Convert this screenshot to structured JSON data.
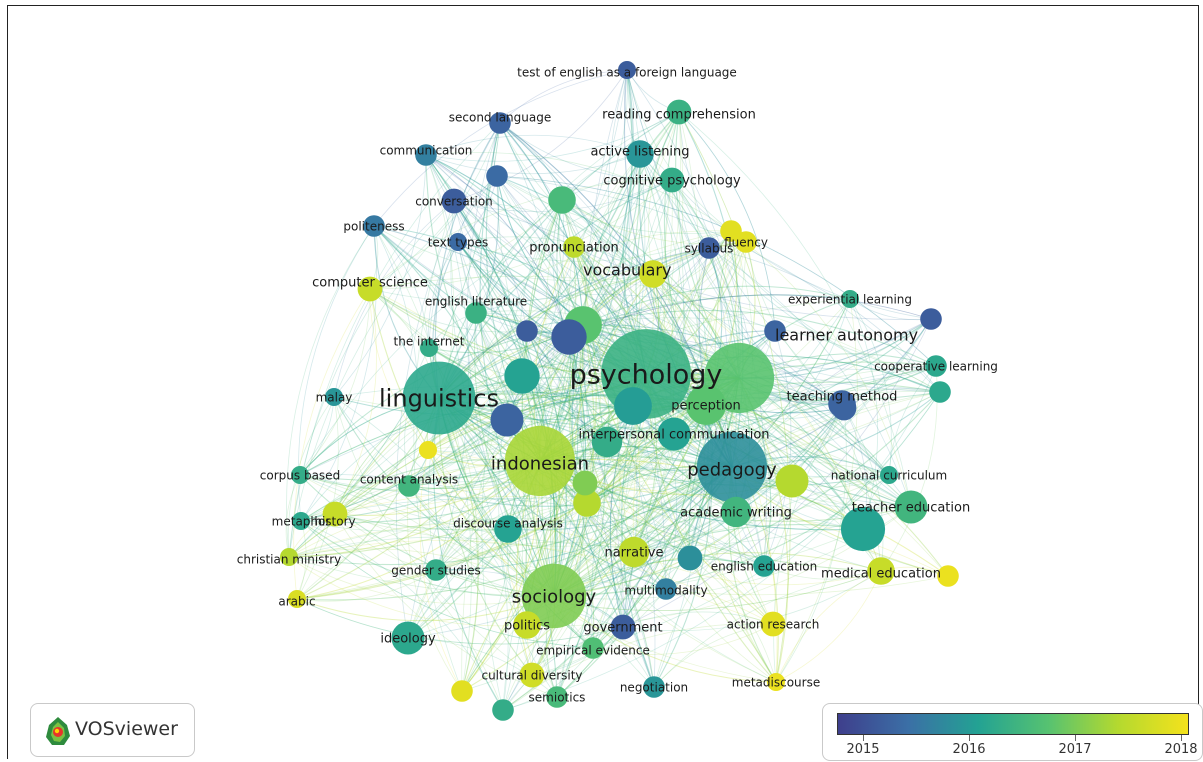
{
  "app": {
    "name": "VOSviewer"
  },
  "overlay_scale": {
    "labels": [
      "2015",
      "2016",
      "2017",
      "2018"
    ],
    "min": 2014.75,
    "max": 2018.3,
    "colors": [
      "#3e3f8c",
      "#3b6fa6",
      "#23a293",
      "#56c271",
      "#b4d92f",
      "#f4e21c"
    ]
  },
  "nodes": [
    {
      "id": "psychology",
      "label": "psychology",
      "year": 2016.5,
      "weight": 46
    },
    {
      "id": "linguistics",
      "label": "linguistics",
      "year": 2016.3,
      "weight": 32
    },
    {
      "id": "pedagogy",
      "label": "pedagogy",
      "year": 2015.9,
      "weight": 30
    },
    {
      "id": "indonesian",
      "label": "indonesian",
      "year": 2017.5,
      "weight": 30
    },
    {
      "id": "sociology",
      "label": "sociology",
      "year": 2017.2,
      "weight": 26
    },
    {
      "id": "perception",
      "label": "perception",
      "year": 2016.9,
      "weight": 12
    },
    {
      "id": "big_right",
      "label": "",
      "year": 2016.9,
      "weight": 30
    },
    {
      "id": "vocabulary",
      "label": "vocabulary",
      "year": 2016.9,
      "weight": 11
    },
    {
      "id": "interpersonal",
      "label": "interpersonal communication",
      "year": 2016.2,
      "weight": 9
    },
    {
      "id": "test_english",
      "label": "test of english as a foreign language",
      "year": 2015.2,
      "weight": 4
    },
    {
      "id": "reading",
      "label": "reading comprehension",
      "year": 2016.5,
      "weight": 6
    },
    {
      "id": "second_language",
      "label": "second language",
      "year": 2015.3,
      "weight": 5
    },
    {
      "id": "communication",
      "label": "communication",
      "year": 2015.7,
      "weight": 5
    },
    {
      "id": "active_listening",
      "label": "active listening",
      "year": 2016.0,
      "weight": 7
    },
    {
      "id": "cognitive",
      "label": "cognitive psychology",
      "year": 2016.4,
      "weight": 6
    },
    {
      "id": "conversation",
      "label": "conversation",
      "year": 2015.2,
      "weight": 6
    },
    {
      "id": "politeness",
      "label": "politeness",
      "year": 2015.6,
      "weight": 5
    },
    {
      "id": "text_types",
      "label": "text types",
      "year": 2015.4,
      "weight": 4
    },
    {
      "id": "pronunciation",
      "label": "pronunciation",
      "year": 2017.7,
      "weight": 5
    },
    {
      "id": "syllabus",
      "label": "syllabus",
      "year": 2015.2,
      "weight": 5
    },
    {
      "id": "fluency",
      "label": "fluency",
      "year": 2018.1,
      "weight": 5
    },
    {
      "id": "computer_science",
      "label": "computer science",
      "year": 2017.8,
      "weight": 6
    },
    {
      "id": "english_literature",
      "label": "english literature",
      "year": 2016.5,
      "weight": 5
    },
    {
      "id": "experiential",
      "label": "experiential learning",
      "year": 2016.4,
      "weight": 4
    },
    {
      "id": "the_internet",
      "label": "the internet",
      "year": 2016.4,
      "weight": 4
    },
    {
      "id": "learner_autonomy",
      "label": "learner autonomy",
      "year": 2015.3,
      "weight": 5
    },
    {
      "id": "cooperative",
      "label": "cooperative learning",
      "year": 2016.3,
      "weight": 5
    },
    {
      "id": "malay",
      "label": "malay",
      "year": 2016.0,
      "weight": 4
    },
    {
      "id": "teaching_method",
      "label": "teaching method",
      "year": 2015.3,
      "weight": 7
    },
    {
      "id": "corpus_based",
      "label": "corpus based",
      "year": 2016.4,
      "weight": 4
    },
    {
      "id": "content_analysis",
      "label": "content analysis",
      "year": 2016.6,
      "weight": 5
    },
    {
      "id": "national_curriculum",
      "label": "national curriculum",
      "year": 2016.3,
      "weight": 4
    },
    {
      "id": "metaphor",
      "label": "metaphor",
      "year": 2016.3,
      "weight": 4
    },
    {
      "id": "history",
      "label": "history",
      "year": 2017.8,
      "weight": 6
    },
    {
      "id": "discourse_analysis",
      "label": "discourse analysis",
      "year": 2016.2,
      "weight": 7
    },
    {
      "id": "academic_writing",
      "label": "academic writing",
      "year": 2016.6,
      "weight": 8
    },
    {
      "id": "teacher_education",
      "label": "teacher education",
      "year": 2016.6,
      "weight": 9
    },
    {
      "id": "christian_ministry",
      "label": "christian ministry",
      "year": 2017.6,
      "weight": 4
    },
    {
      "id": "narrative",
      "label": "narrative",
      "year": 2017.7,
      "weight": 8
    },
    {
      "id": "gender_studies",
      "label": "gender studies",
      "year": 2016.4,
      "weight": 5
    },
    {
      "id": "english_education",
      "label": "english education",
      "year": 2016.2,
      "weight": 5
    },
    {
      "id": "medical_education",
      "label": "medical education",
      "year": 2017.8,
      "weight": 7
    },
    {
      "id": "multimodality",
      "label": "multimodality",
      "year": 2015.7,
      "weight": 5
    },
    {
      "id": "arabic",
      "label": "arabic",
      "year": 2018.0,
      "weight": 4
    },
    {
      "id": "politics",
      "label": "politics",
      "year": 2017.8,
      "weight": 7
    },
    {
      "id": "government",
      "label": "government",
      "year": 2015.2,
      "weight": 6
    },
    {
      "id": "action_research",
      "label": "action research",
      "year": 2018.1,
      "weight": 6
    },
    {
      "id": "ideology",
      "label": "ideology",
      "year": 2016.3,
      "weight": 9
    },
    {
      "id": "empirical_evidence",
      "label": "empirical evidence",
      "year": 2016.8,
      "weight": 5
    },
    {
      "id": "cultural_diversity",
      "label": "cultural diversity",
      "year": 2017.9,
      "weight": 6
    },
    {
      "id": "semiotics",
      "label": "semiotics",
      "year": 2016.7,
      "weight": 5
    },
    {
      "id": "negotiation",
      "label": "negotiation",
      "year": 2016.0,
      "weight": 5
    },
    {
      "id": "metadiscourse",
      "label": "metadiscourse",
      "year": 2018.2,
      "weight": 4
    },
    {
      "id": "n1",
      "label": "",
      "year": 2015.2,
      "weight": 10
    },
    {
      "id": "n2",
      "label": "",
      "year": 2016.2,
      "weight": 10
    },
    {
      "id": "n3",
      "label": "",
      "year": 2015.3,
      "weight": 9
    },
    {
      "id": "n4",
      "label": "",
      "year": 2016.1,
      "weight": 11
    },
    {
      "id": "n5",
      "label": "",
      "year": 2016.4,
      "weight": 8
    },
    {
      "id": "n6",
      "label": "",
      "year": 2017.9,
      "weight": 7
    },
    {
      "id": "n7",
      "label": "",
      "year": 2016.7,
      "weight": 7
    },
    {
      "id": "n8",
      "label": "",
      "year": 2017.6,
      "weight": 9
    },
    {
      "id": "n9",
      "label": "",
      "year": 2015.3,
      "weight": 6
    },
    {
      "id": "n10",
      "label": "",
      "year": 2016.2,
      "weight": 14
    },
    {
      "id": "n11",
      "label": "",
      "year": 2015.9,
      "weight": 6
    },
    {
      "id": "n12",
      "label": "",
      "year": 2017.2,
      "weight": 6
    },
    {
      "id": "n13",
      "label": "",
      "year": 2015.2,
      "weight": 5
    },
    {
      "id": "n14",
      "label": "",
      "year": 2018.1,
      "weight": 5
    },
    {
      "id": "n15",
      "label": "",
      "year": 2018.2,
      "weight": 5
    },
    {
      "id": "n16",
      "label": "",
      "year": 2017.6,
      "weight": 7
    },
    {
      "id": "n17",
      "label": "",
      "year": 2015.2,
      "weight": 5
    },
    {
      "id": "n18",
      "label": "",
      "year": 2016.3,
      "weight": 5
    },
    {
      "id": "n19",
      "label": "",
      "year": 2015.4,
      "weight": 5
    },
    {
      "id": "n20",
      "label": "",
      "year": 2018.2,
      "weight": 4
    },
    {
      "id": "n21",
      "label": "",
      "year": 2018.1,
      "weight": 5
    },
    {
      "id": "n22",
      "label": "",
      "year": 2016.4,
      "weight": 5
    }
  ]
}
